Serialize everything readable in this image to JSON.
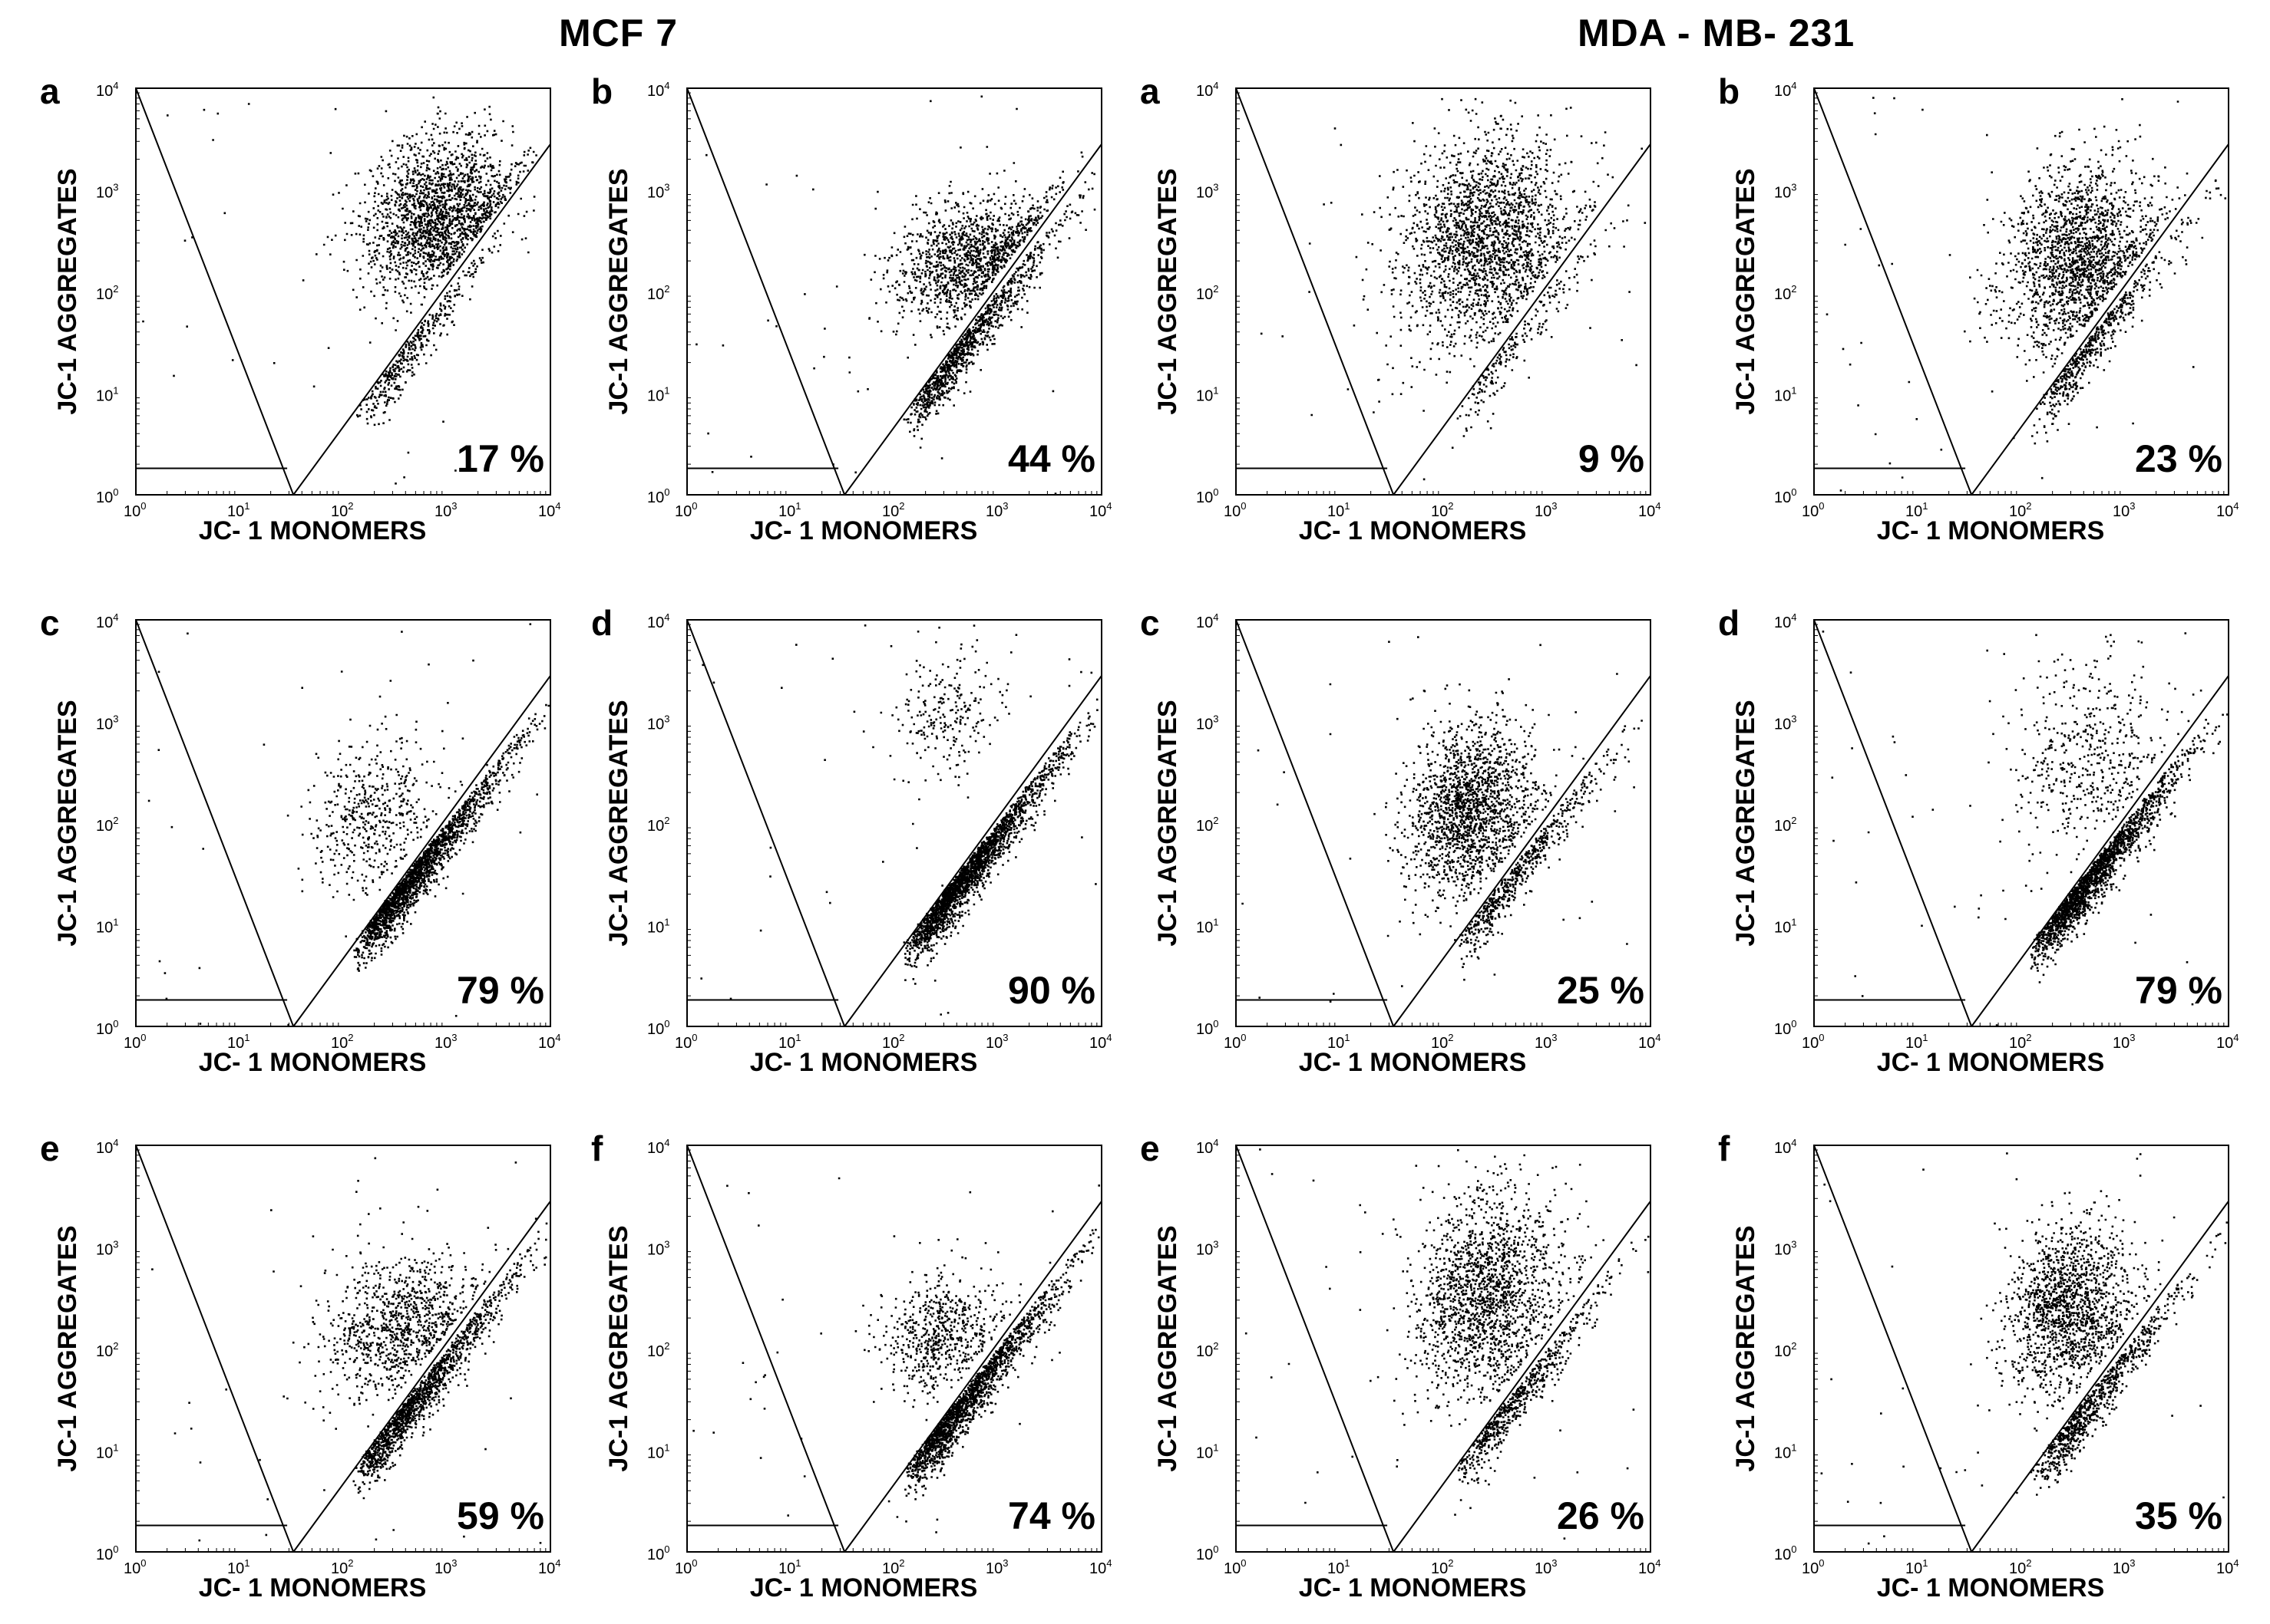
{
  "group_titles": [
    "MCF 7",
    "MDA - MB- 231"
  ],
  "axis_labels": {
    "x": "JC- 1 MONOMERS",
    "y": "JC-1 AGGREGATES"
  },
  "axis_ticks": [
    "10",
    "10",
    "10",
    "10",
    "10"
  ],
  "axis_tick_exponents": [
    "0",
    "1",
    "2",
    "3",
    "4"
  ],
  "point_color": "#000000",
  "chart_data": [
    {
      "type": "scatter",
      "group": "MCF 7",
      "label": "a",
      "percent_label": "17 %",
      "percent_value": 17,
      "xscale": "log",
      "yscale": "log",
      "xlim": [
        1,
        10000
      ],
      "ylim": [
        1,
        10000
      ],
      "populations": [
        {
          "center_log": [
            2.9,
            2.75
          ],
          "spread_log": [
            0.35,
            0.38
          ],
          "share": 0.83
        }
      ]
    },
    {
      "type": "scatter",
      "group": "MCF 7",
      "label": "b",
      "percent_label": "44 %",
      "percent_value": 44,
      "xscale": "log",
      "yscale": "log",
      "xlim": [
        1,
        10000
      ],
      "ylim": [
        1,
        10000
      ],
      "populations": [
        {
          "center_log": [
            2.7,
            2.3
          ],
          "spread_log": [
            0.35,
            0.3
          ],
          "share": 0.56
        }
      ]
    },
    {
      "type": "scatter",
      "group": "MCF 7",
      "label": "c",
      "percent_label": "79 %",
      "percent_value": 79,
      "xscale": "log",
      "yscale": "log",
      "xlim": [
        1,
        10000
      ],
      "ylim": [
        1,
        10000
      ],
      "populations": [
        {
          "center_log": [
            2.3,
            2.1
          ],
          "spread_log": [
            0.3,
            0.35
          ],
          "share": 0.21
        }
      ]
    },
    {
      "type": "scatter",
      "group": "MCF 7",
      "label": "d",
      "percent_label": "90 %",
      "percent_value": 90,
      "xscale": "log",
      "yscale": "log",
      "xlim": [
        1,
        10000
      ],
      "ylim": [
        1,
        10000
      ],
      "populations": [
        {
          "center_log": [
            2.5,
            3.1
          ],
          "spread_log": [
            0.25,
            0.3
          ],
          "share": 0.1
        }
      ]
    },
    {
      "type": "scatter",
      "group": "MCF 7",
      "label": "e",
      "percent_label": "59 %",
      "percent_value": 59,
      "xscale": "log",
      "yscale": "log",
      "xlim": [
        1,
        10000
      ],
      "ylim": [
        1,
        10000
      ],
      "populations": [
        {
          "center_log": [
            2.5,
            2.2
          ],
          "spread_log": [
            0.35,
            0.35
          ],
          "share": 0.41
        }
      ]
    },
    {
      "type": "scatter",
      "group": "MCF 7",
      "label": "f",
      "percent_label": "74 %",
      "percent_value": 74,
      "xscale": "log",
      "yscale": "log",
      "xlim": [
        1,
        10000
      ],
      "ylim": [
        1,
        10000
      ],
      "populations": [
        {
          "center_log": [
            2.45,
            2.15
          ],
          "spread_log": [
            0.3,
            0.3
          ],
          "share": 0.26
        }
      ]
    },
    {
      "type": "scatter",
      "group": "MDA - MB- 231",
      "label": "a",
      "percent_label": "9 %",
      "percent_value": 9,
      "xscale": "log",
      "yscale": "log",
      "xlim": [
        1,
        10000
      ],
      "ylim": [
        1,
        10000
      ],
      "populations": [
        {
          "center_log": [
            2.4,
            2.5
          ],
          "spread_log": [
            0.4,
            0.5
          ],
          "share": 0.91
        }
      ]
    },
    {
      "type": "scatter",
      "group": "MDA - MB- 231",
      "label": "b",
      "percent_label": "23 %",
      "percent_value": 23,
      "xscale": "log",
      "yscale": "log",
      "xlim": [
        1,
        10000
      ],
      "ylim": [
        1,
        10000
      ],
      "populations": [
        {
          "center_log": [
            2.55,
            2.35
          ],
          "spread_log": [
            0.35,
            0.45
          ],
          "share": 0.77
        }
      ]
    },
    {
      "type": "scatter",
      "group": "MDA - MB- 231",
      "label": "c",
      "percent_label": "25 %",
      "percent_value": 25,
      "xscale": "log",
      "yscale": "log",
      "xlim": [
        1,
        10000
      ],
      "ylim": [
        1,
        10000
      ],
      "populations": [
        {
          "center_log": [
            2.25,
            2.15
          ],
          "spread_log": [
            0.3,
            0.4
          ],
          "share": 0.75
        }
      ]
    },
    {
      "type": "scatter",
      "group": "MDA - MB- 231",
      "label": "d",
      "percent_label": "79 %",
      "percent_value": 79,
      "xscale": "log",
      "yscale": "log",
      "xlim": [
        1,
        10000
      ],
      "ylim": [
        1,
        10000
      ],
      "populations": [
        {
          "center_log": [
            2.6,
            2.6
          ],
          "spread_log": [
            0.35,
            0.5
          ],
          "share": 0.21
        }
      ]
    },
    {
      "type": "scatter",
      "group": "MDA - MB- 231",
      "label": "e",
      "percent_label": "26 %",
      "percent_value": 26,
      "xscale": "log",
      "yscale": "log",
      "xlim": [
        1,
        10000
      ],
      "ylim": [
        1,
        10000
      ],
      "populations": [
        {
          "center_log": [
            2.4,
            2.5
          ],
          "spread_log": [
            0.35,
            0.5
          ],
          "share": 0.74
        }
      ]
    },
    {
      "type": "scatter",
      "group": "MDA - MB- 231",
      "label": "f",
      "percent_label": "35 %",
      "percent_value": 35,
      "xscale": "log",
      "yscale": "log",
      "xlim": [
        1,
        10000
      ],
      "ylim": [
        1,
        10000
      ],
      "populations": [
        {
          "center_log": [
            2.45,
            2.4
          ],
          "spread_log": [
            0.3,
            0.4
          ],
          "share": 0.65
        }
      ]
    }
  ]
}
